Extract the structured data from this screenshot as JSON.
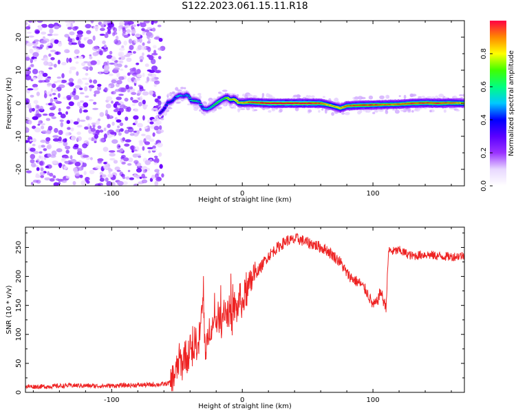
{
  "title": "S122.2023.061.15.11.R18",
  "chart_data": [
    {
      "type": "heatmap",
      "xlabel": "Height of straight line (km)",
      "ylabel": "Frequency (Hz)",
      "xlim": [
        -166,
        170
      ],
      "ylim": [
        -25,
        25
      ],
      "xticks": [
        -100,
        0,
        100
      ],
      "yticks": [
        -20,
        -10,
        0,
        10,
        20
      ],
      "colorbar": {
        "label": "Normalized spectral amplitude",
        "range": [
          0,
          1
        ],
        "ticks": [
          0.0,
          0.2,
          0.4,
          0.6,
          0.8
        ],
        "colormap": [
          "#ffffff",
          "#e8d8ff",
          "#9a33ff",
          "#5a00ff",
          "#0000ff",
          "#00c8ff",
          "#00ff80",
          "#40ff00",
          "#ffff00",
          "#ff8800",
          "#ff0044"
        ]
      },
      "noise_region_x": [
        -166,
        -63
      ],
      "ridge": {
        "x": [
          -63,
          -60,
          -57,
          -54,
          -51,
          -48,
          -45,
          -42,
          -39,
          -36,
          -33,
          -30,
          -27,
          -24,
          -21,
          -18,
          -15,
          -12,
          -9,
          -6,
          -3,
          0,
          5,
          10,
          20,
          30,
          40,
          50,
          60,
          65,
          70,
          75,
          80,
          90,
          100,
          110,
          120,
          130,
          140,
          150,
          160,
          170
        ],
        "freq": [
          -3,
          -1.8,
          0.2,
          0.5,
          1.8,
          2.4,
          2.2,
          2.6,
          0.8,
          0.7,
          0.4,
          -1.6,
          -1.8,
          -1.2,
          -0.4,
          0.5,
          1.2,
          1.8,
          1.0,
          1.3,
          0.2,
          0.1,
          0.3,
          0.2,
          0.0,
          0.0,
          0.0,
          0.0,
          0.0,
          -0.4,
          -0.9,
          -1.5,
          -0.8,
          -0.6,
          -0.5,
          -0.4,
          -0.3,
          0.0,
          0.1,
          0.0,
          0.1,
          0.0
        ],
        "amplitude": [
          0.35,
          0.4,
          0.45,
          0.4,
          0.45,
          0.5,
          0.45,
          0.5,
          0.55,
          0.6,
          0.5,
          0.45,
          0.5,
          0.55,
          0.6,
          0.65,
          0.6,
          0.7,
          0.75,
          0.8,
          0.8,
          0.85,
          0.9,
          0.95,
          1.0,
          1.0,
          1.0,
          1.0,
          0.95,
          0.85,
          0.8,
          0.85,
          0.9,
          0.95,
          0.95,
          0.9,
          0.9,
          0.95,
          0.95,
          0.95,
          0.9,
          0.85
        ]
      }
    },
    {
      "type": "line",
      "xlabel": "Height of straight line (km)",
      "ylabel": "SNR (10 * v/v)",
      "xlim": [
        -166,
        170
      ],
      "ylim": [
        0,
        285
      ],
      "xticks": [
        -100,
        0,
        100
      ],
      "yticks": [
        0,
        50,
        100,
        150,
        200,
        250
      ],
      "series": [
        {
          "color": "#ee2222",
          "x": [
            -166,
            -150,
            -130,
            -110,
            -90,
            -70,
            -60,
            -55,
            -52,
            -50,
            -48,
            -46,
            -44,
            -42,
            -40,
            -38,
            -36,
            -34,
            -32,
            -30,
            -28,
            -26,
            -24,
            -22,
            -20,
            -18,
            -16,
            -14,
            -12,
            -10,
            -8,
            -6,
            -4,
            -2,
            0,
            2,
            4,
            6,
            8,
            10,
            14,
            18,
            22,
            26,
            30,
            34,
            38,
            42,
            46,
            50,
            55,
            60,
            65,
            70,
            75,
            80,
            85,
            90,
            95,
            100,
            103,
            106,
            108,
            110,
            112,
            115,
            120,
            130,
            140,
            150,
            160,
            170
          ],
          "values": [
            10,
            10,
            12,
            11,
            12,
            13,
            14,
            17,
            30,
            40,
            60,
            45,
            70,
            55,
            80,
            60,
            95,
            70,
            115,
            160,
            55,
            100,
            120,
            110,
            125,
            130,
            120,
            150,
            135,
            140,
            120,
            150,
            140,
            165,
            150,
            170,
            175,
            185,
            200,
            205,
            215,
            230,
            240,
            248,
            255,
            262,
            262,
            265,
            262,
            258,
            255,
            250,
            245,
            235,
            225,
            205,
            195,
            188,
            175,
            150,
            155,
            175,
            158,
            148,
            245,
            243,
            245,
            235,
            238,
            235,
            234,
            236
          ]
        }
      ]
    }
  ]
}
